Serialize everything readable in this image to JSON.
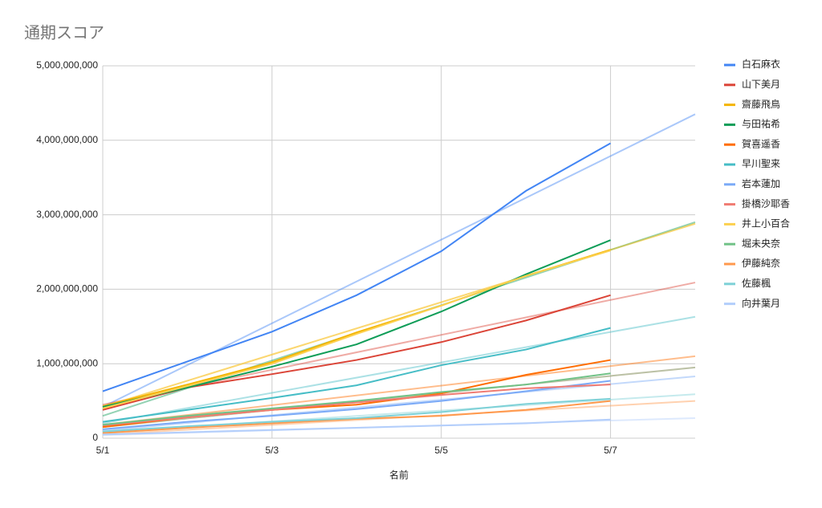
{
  "chart_data": {
    "type": "line",
    "title": "通期スコア",
    "x_label": "名前",
    "categories": [
      "5/1",
      null,
      "5/3",
      null,
      "5/5",
      null,
      "5/7",
      null
    ],
    "ylim": [
      0,
      5000000000
    ],
    "yticks": [
      0,
      {
        "value": 1000000000,
        "label": "1,000,000,000"
      },
      {
        "value": 2000000000,
        "label": "2,000,000,000"
      },
      {
        "value": 3000000000,
        "label": "3,000,000,000"
      },
      {
        "value": 4000000000,
        "label": "4,000,000,000"
      },
      {
        "value": 5000000000,
        "label": "5,000,000,000"
      }
    ],
    "grid": true,
    "legend": "right",
    "series": [
      {
        "name": "白石麻衣",
        "color": "#4285f4",
        "values": [
          630000000,
          1030000000,
          1430000000,
          1920000000,
          2510000000,
          3320000000,
          3960000000,
          null
        ],
        "trendline": [
          420000000,
          4350000000
        ]
      },
      {
        "name": "山下美月",
        "color": "#db4437",
        "values": [
          380000000,
          680000000,
          860000000,
          1050000000,
          1290000000,
          1580000000,
          1920000000,
          null
        ],
        "trendline": [
          450000000,
          2090000000
        ]
      },
      {
        "name": "齋藤飛鳥",
        "color": "#f4b400",
        "values": [
          430000000,
          720000000,
          1020000000,
          1420000000,
          1780000000,
          2180000000,
          2530000000,
          null
        ],
        "trendline": [
          420000000,
          2880000000
        ]
      },
      {
        "name": "与田祐希",
        "color": "#0f9d58",
        "values": [
          420000000,
          680000000,
          960000000,
          1260000000,
          1700000000,
          2200000000,
          2660000000,
          null
        ],
        "trendline": [
          300000000,
          2900000000
        ]
      },
      {
        "name": "賀喜遥香",
        "color": "#ff6d01",
        "values": [
          150000000,
          280000000,
          380000000,
          450000000,
          600000000,
          850000000,
          1050000000,
          null
        ],
        "trendline": [
          180000000,
          1100000000
        ]
      },
      {
        "name": "早川聖来",
        "color": "#46bdc6",
        "values": [
          220000000,
          380000000,
          540000000,
          710000000,
          980000000,
          1190000000,
          1480000000,
          null
        ],
        "trendline": [
          200000000,
          1630000000
        ]
      },
      {
        "name": "岩本蓮加",
        "color": "#7baaf7",
        "values": [
          120000000,
          220000000,
          300000000,
          390000000,
          500000000,
          630000000,
          770000000,
          null
        ],
        "trendline": [
          100000000,
          830000000
        ]
      },
      {
        "name": "掛橋沙耶香",
        "color": "#f07b72",
        "values": [
          170000000,
          280000000,
          380000000,
          480000000,
          580000000,
          670000000,
          720000000,
          null
        ],
        "trendline": [
          150000000,
          950000000
        ]
      },
      {
        "name": "井上小百合",
        "color": "#fcd04f",
        "values": [
          400000000,
          700000000,
          1000000000,
          1400000000,
          1780000000,
          2180000000,
          2520000000,
          null
        ],
        "trendline": [
          420000000,
          2880000000
        ]
      },
      {
        "name": "堀未央奈",
        "color": "#71c287",
        "values": [
          180000000,
          300000000,
          400000000,
          500000000,
          620000000,
          720000000,
          870000000,
          null
        ],
        "trendline": [
          150000000,
          950000000
        ]
      },
      {
        "name": "伊藤純奈",
        "color": "#ff994d",
        "values": [
          70000000,
          140000000,
          200000000,
          260000000,
          300000000,
          380000000,
          500000000,
          null
        ],
        "trendline": [
          50000000,
          500000000
        ]
      },
      {
        "name": "佐藤楓",
        "color": "#7ed1d7",
        "values": [
          90000000,
          160000000,
          220000000,
          270000000,
          350000000,
          460000000,
          530000000,
          null
        ],
        "trendline": [
          80000000,
          590000000
        ]
      },
      {
        "name": "向井葉月",
        "color": "#b3cefb",
        "values": [
          50000000,
          80000000,
          110000000,
          140000000,
          170000000,
          200000000,
          250000000,
          null
        ],
        "trendline": [
          40000000,
          270000000
        ]
      }
    ]
  }
}
